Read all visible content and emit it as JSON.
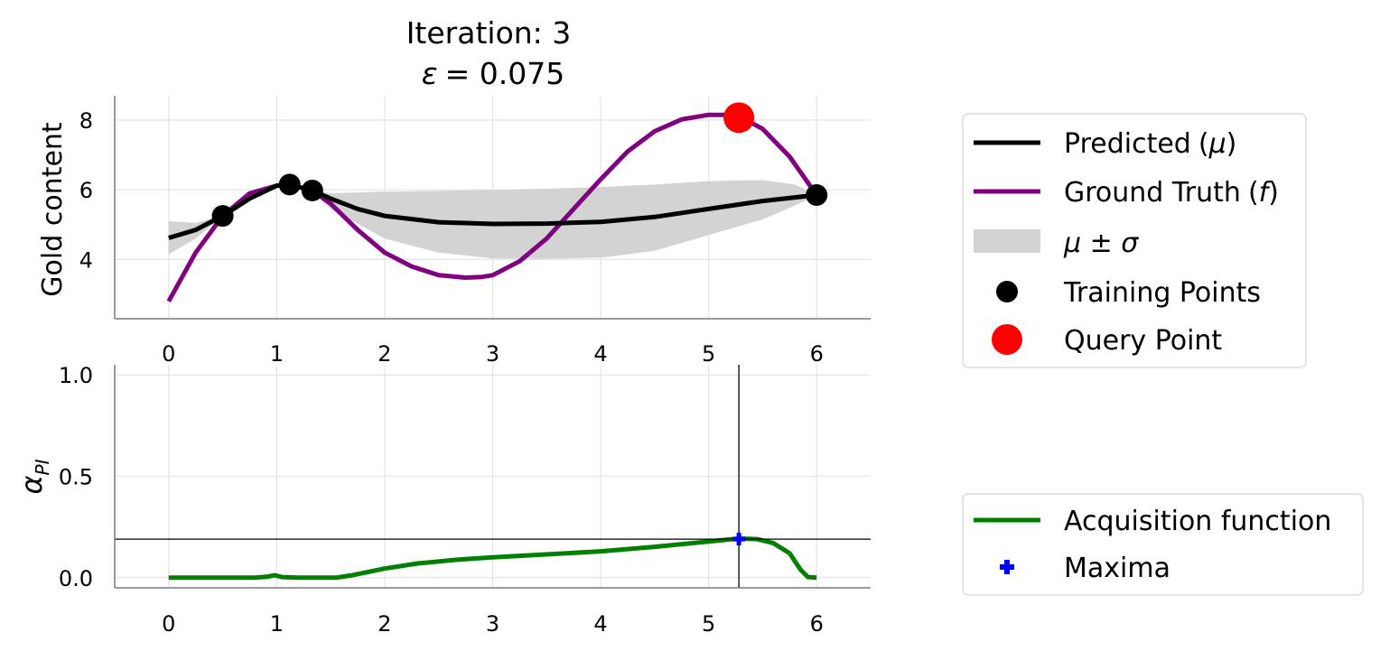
{
  "chart_data": [
    {
      "type": "line",
      "title_line1": "Iteration: 3",
      "title_eps_symbol": "ε",
      "title_eps_value": "= 0.075",
      "ylabel": "Gold content",
      "xlim": [
        -0.5,
        6.5
      ],
      "ylim": [
        2.3,
        8.7
      ],
      "xticks": [
        "0",
        "1",
        "2",
        "3",
        "4",
        "5",
        "6"
      ],
      "yticks": [
        "4",
        "6",
        "8"
      ],
      "grid": true,
      "series": [
        {
          "name": "Predicted",
          "name_symbol": "μ",
          "color": "#000000",
          "x": [
            0,
            0.25,
            0.5,
            0.75,
            1.0,
            1.12,
            1.33,
            1.5,
            1.75,
            2.0,
            2.5,
            3.0,
            3.5,
            4.0,
            4.5,
            5.0,
            5.5,
            6.0
          ],
          "y": [
            4.62,
            4.85,
            5.25,
            5.75,
            6.12,
            6.15,
            5.98,
            5.75,
            5.45,
            5.25,
            5.07,
            5.02,
            5.03,
            5.08,
            5.22,
            5.45,
            5.68,
            5.85
          ]
        },
        {
          "name": "Ground Truth",
          "name_symbol": "f",
          "color": "#800080",
          "x": [
            0,
            0.25,
            0.5,
            0.75,
            1.0,
            1.12,
            1.33,
            1.5,
            1.75,
            2.0,
            2.25,
            2.5,
            2.75,
            2.9,
            3.0,
            3.25,
            3.5,
            3.75,
            4.0,
            4.25,
            4.5,
            4.75,
            5.0,
            5.15,
            5.3,
            5.5,
            5.75,
            6.0
          ],
          "y": [
            2.8,
            4.2,
            5.25,
            5.9,
            6.12,
            6.15,
            5.98,
            5.6,
            4.85,
            4.2,
            3.8,
            3.55,
            3.48,
            3.5,
            3.55,
            3.95,
            4.6,
            5.45,
            6.3,
            7.1,
            7.68,
            8.02,
            8.15,
            8.15,
            8.08,
            7.75,
            6.95,
            5.85
          ]
        }
      ],
      "band": {
        "name_symbol": "μ ± σ",
        "color": "#d3d3d3",
        "x": [
          0,
          0.25,
          0.5,
          0.75,
          1.0,
          1.12,
          1.33,
          1.5,
          2.0,
          2.5,
          3.0,
          3.5,
          4.0,
          4.5,
          5.0,
          5.5,
          5.8,
          6.0
        ],
        "upper": [
          5.1,
          5.05,
          5.27,
          5.8,
          6.14,
          6.16,
          5.99,
          5.9,
          5.95,
          5.97,
          6.0,
          6.03,
          6.08,
          6.15,
          6.25,
          6.28,
          6.15,
          5.86
        ],
        "lower": [
          4.15,
          4.6,
          5.23,
          5.7,
          6.1,
          6.14,
          5.97,
          5.45,
          4.6,
          4.2,
          4.03,
          4.02,
          4.05,
          4.25,
          4.7,
          5.15,
          5.55,
          5.84
        ]
      },
      "training_points": {
        "name": "Training Points",
        "x": [
          0.5,
          1.12,
          1.33,
          6.0
        ],
        "y": [
          5.25,
          6.15,
          5.98,
          5.85
        ]
      },
      "query_point": {
        "name": "Query Point",
        "color": "#ff0000",
        "x": 5.28,
        "y": 8.07
      }
    },
    {
      "type": "line",
      "ylabel_symbol": "α",
      "ylabel_sub": "PI",
      "xlim": [
        -0.5,
        6.5
      ],
      "ylim": [
        -0.05,
        1.05
      ],
      "xticks": [
        "0",
        "1",
        "2",
        "3",
        "4",
        "5",
        "6"
      ],
      "yticks": [
        "0.0",
        "0.5",
        "1.0"
      ],
      "grid": true,
      "series": [
        {
          "name": "Acquisition function",
          "color": "#008000",
          "x": [
            0,
            0.8,
            0.92,
            0.98,
            1.05,
            1.2,
            1.55,
            1.7,
            2.0,
            2.3,
            2.7,
            3.0,
            3.5,
            4.0,
            4.5,
            5.0,
            5.28,
            5.45,
            5.6,
            5.75,
            5.85,
            5.92,
            6.0
          ],
          "y": [
            0,
            0,
            0.005,
            0.012,
            0.003,
            0,
            0,
            0.012,
            0.045,
            0.07,
            0.09,
            0.1,
            0.115,
            0.13,
            0.152,
            0.178,
            0.193,
            0.19,
            0.17,
            0.12,
            0.04,
            0.003,
            0
          ]
        }
      ],
      "maxima": {
        "name": "Maxima",
        "color": "#0000ff",
        "x": 5.28,
        "y": 0.19
      }
    }
  ]
}
